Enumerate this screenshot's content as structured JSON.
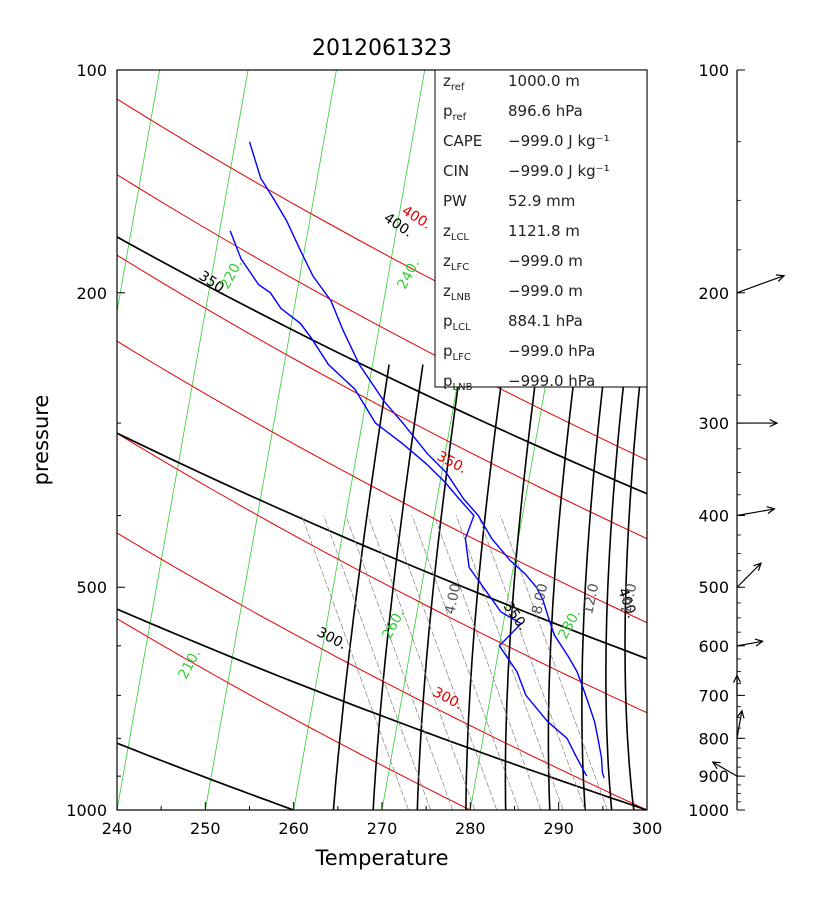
{
  "chart_data": {
    "type": "skew-t",
    "title": "2012061323",
    "xlabel": "Temperature",
    "ylabel": "pressure",
    "xlim": [
      240,
      300
    ],
    "ylim": [
      1000,
      100
    ],
    "x_ticks": [
      "240",
      "250",
      "260",
      "270",
      "280",
      "290",
      "300"
    ],
    "y_ticks": [
      "100",
      "200",
      "500",
      "1000"
    ],
    "dry_adiabat_labels": [
      "300.",
      "350.",
      "400."
    ],
    "moist_adiabat_labels": [
      "300.",
      "350.",
      "400."
    ],
    "isotherm_labels": [
      "210.",
      "220.",
      "240.",
      "260.",
      "280."
    ],
    "mixing_ratio_labels": [
      "4.00",
      "8.00",
      "12.0",
      "14.0"
    ],
    "dry_adiabat_thetas": [
      280,
      300,
      325,
      350,
      375,
      400,
      425
    ],
    "moist_adiabat_thetas": [
      240,
      260,
      300,
      350,
      400
    ],
    "isotherm_values": [
      200,
      210,
      220,
      230,
      240,
      250,
      260,
      270,
      280
    ],
    "temperature_profile": [
      [
        125,
        241.6
      ],
      [
        140,
        243.6
      ],
      [
        150,
        245.6
      ],
      [
        160,
        247.4
      ],
      [
        175,
        249.5
      ],
      [
        190,
        251.5
      ],
      [
        205,
        254.0
      ],
      [
        225,
        256.0
      ],
      [
        250,
        258.5
      ],
      [
        280,
        262.0
      ],
      [
        300,
        264.6
      ],
      [
        330,
        268.0
      ],
      [
        350,
        270.5
      ],
      [
        380,
        273.0
      ],
      [
        400,
        275.0
      ],
      [
        430,
        277.0
      ],
      [
        460,
        279.5
      ],
      [
        480,
        281.5
      ],
      [
        500,
        283.0
      ],
      [
        520,
        284.0
      ],
      [
        550,
        285.0
      ],
      [
        580,
        286.0
      ],
      [
        620,
        288.0
      ],
      [
        650,
        289.3
      ],
      [
        680,
        290.2
      ],
      [
        720,
        291.3
      ],
      [
        760,
        292.3
      ],
      [
        800,
        293.0
      ],
      [
        850,
        293.8
      ],
      [
        890,
        294.2
      ],
      [
        905,
        294.5
      ]
    ],
    "dewpoint_profile": [
      [
        165,
        241.2
      ],
      [
        180,
        243.0
      ],
      [
        195,
        245.5
      ],
      [
        200,
        247.0
      ],
      [
        210,
        248.5
      ],
      [
        220,
        251.0
      ],
      [
        230,
        252.5
      ],
      [
        250,
        255.0
      ],
      [
        270,
        258.5
      ],
      [
        300,
        261.5
      ],
      [
        320,
        265.0
      ],
      [
        340,
        268.0
      ],
      [
        360,
        270.5
      ],
      [
        380,
        272.5
      ],
      [
        400,
        274.5
      ],
      [
        430,
        274.0
      ],
      [
        470,
        275.0
      ],
      [
        500,
        277.0
      ],
      [
        540,
        279.5
      ],
      [
        560,
        282.0
      ],
      [
        600,
        280.0
      ],
      [
        650,
        282.5
      ],
      [
        700,
        284.0
      ],
      [
        760,
        287.0
      ],
      [
        800,
        289.5
      ],
      [
        850,
        291.0
      ],
      [
        900,
        292.5
      ]
    ]
  },
  "info_box": [
    {
      "name": "z",
      "sub": "ref",
      "value": "1000.0 m"
    },
    {
      "name": "p",
      "sub": "ref",
      "value": "896.6 hPa"
    },
    {
      "name": "CAPE",
      "sub": "",
      "value": "−999.0 J kg⁻¹"
    },
    {
      "name": "CIN",
      "sub": "",
      "value": "−999.0 J kg⁻¹"
    },
    {
      "name": "PW",
      "sub": "",
      "value": "52.9 mm"
    },
    {
      "name": "z",
      "sub": "LCL",
      "value": "1121.8 m"
    },
    {
      "name": "z",
      "sub": "LFC",
      "value": "−999.0 m"
    },
    {
      "name": "z",
      "sub": "LNB",
      "value": "−999.0 m"
    },
    {
      "name": "p",
      "sub": "LCL",
      "value": "884.1 hPa"
    },
    {
      "name": "p",
      "sub": "LFC",
      "value": "−999.0 hPa"
    },
    {
      "name": "p",
      "sub": "LNB",
      "value": "−999.0 hPa"
    }
  ],
  "wind_panel": {
    "labels": [
      "100",
      "200",
      "300",
      "400",
      "500",
      "600",
      "700",
      "800",
      "900",
      "1000"
    ],
    "wind_barbs": [
      {
        "pressure": 200,
        "direction_deg": 70,
        "speed": 1.0
      },
      {
        "pressure": 300,
        "direction_deg": 90,
        "speed": 0.75
      },
      {
        "pressure": 400,
        "direction_deg": 80,
        "speed": 0.7
      },
      {
        "pressure": 500,
        "direction_deg": 45,
        "speed": 0.6
      },
      {
        "pressure": 600,
        "direction_deg": 80,
        "speed": 0.4
      },
      {
        "pressure": 700,
        "direction_deg": 0,
        "speed": 0.25
      },
      {
        "pressure": 800,
        "direction_deg": 10,
        "speed": 0.45
      },
      {
        "pressure": 900,
        "direction_deg": 300,
        "speed": 0.45
      }
    ]
  },
  "colors": {
    "dry_adiabat": "#e00000",
    "moist_adiabat": "#000000",
    "isotherm": "#33cc33",
    "mixing_ratio": "#808080",
    "profile": "#0000ff"
  }
}
